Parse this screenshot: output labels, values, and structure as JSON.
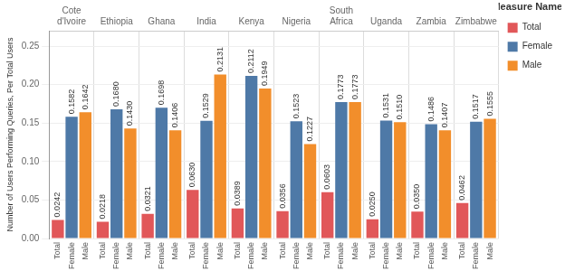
{
  "chart_data": {
    "type": "bar",
    "y_label": "Number of Users Performing Queries, Per Total Users",
    "legend_title": "Measure Names",
    "legend": "right",
    "grid": true,
    "data_labels": true,
    "categories": [
      "Cote d'Ivoire",
      "Ethiopia",
      "Ghana",
      "India",
      "Kenya",
      "Nigeria",
      "South Africa",
      "Uganda",
      "Zambia",
      "Zimbabwe"
    ],
    "series": [
      {
        "name": "Total",
        "color": "#e15759",
        "values": [
          0.0242,
          0.0218,
          0.0321,
          0.063,
          0.0389,
          0.0356,
          0.0603,
          0.025,
          0.035,
          0.0462
        ],
        "value_labels": [
          "0.0242",
          "0.0218",
          "0.0321",
          "0.0630",
          "0.0389",
          "0.0356",
          "0.0603",
          "0.0250",
          "0.0350",
          "0.0462"
        ]
      },
      {
        "name": "Female",
        "color": "#4e79a7",
        "values": [
          0.1582,
          0.168,
          0.1698,
          0.1529,
          0.2112,
          0.1523,
          0.1773,
          0.1531,
          0.1486,
          0.1517
        ],
        "value_labels": [
          "0.1582",
          "0.1680",
          "0.1698",
          "0.1529",
          "0.2112",
          "0.1523",
          "0.1773",
          "0.1531",
          "0.1486",
          "0.1517"
        ]
      },
      {
        "name": "Male",
        "color": "#f28e2b",
        "values": [
          0.1642,
          0.143,
          0.1406,
          0.2131,
          0.1949,
          0.1227,
          0.1773,
          0.151,
          0.1407,
          0.1555
        ],
        "value_labels": [
          "0.1642",
          "0.1430",
          "0.1406",
          "0.2131",
          "0.1949",
          "0.1227",
          "0.1773",
          "0.1510",
          "0.1407",
          "0.1555"
        ]
      }
    ],
    "ylim": [
      0,
      0.27
    ],
    "yticks": [
      {
        "value": 0,
        "label": "0.00"
      },
      {
        "value": 0.05,
        "label": "0.05"
      },
      {
        "value": 0.1,
        "label": "0.10"
      },
      {
        "value": 0.15,
        "label": "0.15"
      },
      {
        "value": 0.2,
        "label": "0.20"
      },
      {
        "value": 0.25,
        "label": "0.25"
      }
    ]
  }
}
